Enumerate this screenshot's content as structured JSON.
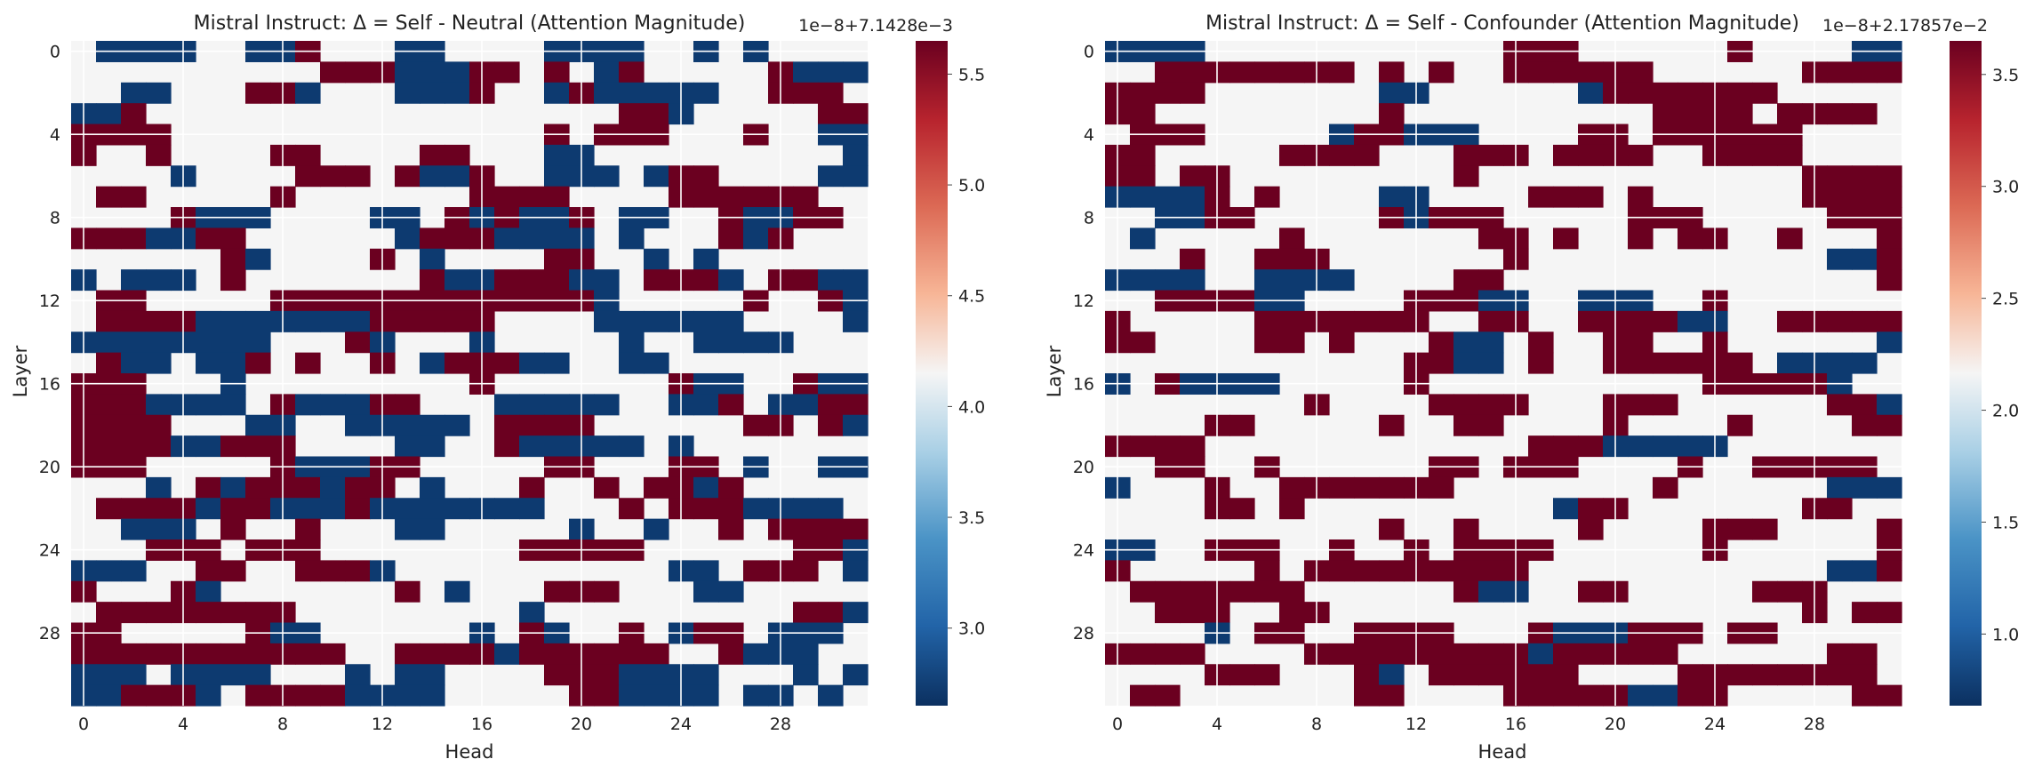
{
  "chart_data": [
    {
      "type": "heatmap",
      "title": "Mistral Instruct: Δ = Self - Neutral (Attention Magnitude)",
      "xlabel": "Head",
      "ylabel": "Layer",
      "n_rows": 32,
      "n_cols": 32,
      "x_ticks": [
        "0",
        "4",
        "8",
        "12",
        "16",
        "20",
        "24",
        "28"
      ],
      "y_ticks": [
        "0",
        "4",
        "8",
        "12",
        "16",
        "20",
        "24",
        "28"
      ],
      "colorbar": {
        "offset_label": "1e−8+7.1428e−3",
        "ticks": [
          "3.0",
          "3.5",
          "4.0",
          "4.5",
          "5.0",
          "5.5"
        ],
        "tick_values": [
          3.0,
          3.5,
          4.0,
          4.5,
          5.0,
          5.5
        ],
        "vmin": 2.65,
        "vmax": 5.65
      },
      "colormap": {
        "low": "#0d3a70",
        "mid": "#f5f5f5",
        "high": "#6b0020"
      },
      "value_levels": {
        "low": 2.65,
        "mid": 4.15,
        "high": 5.65
      },
      "value_codes": "0 = low (blue), 1 = neutral (near white), 2 = high (dark red)",
      "seed": 17,
      "p_low": 0.26,
      "p_high": 0.28
    },
    {
      "type": "heatmap",
      "title": "Mistral Instruct: Δ = Self - Confounder (Attention Magnitude)",
      "xlabel": "Head",
      "ylabel": "Layer",
      "n_rows": 32,
      "n_cols": 32,
      "x_ticks": [
        "0",
        "4",
        "8",
        "12",
        "16",
        "20",
        "24",
        "28"
      ],
      "y_ticks": [
        "0",
        "4",
        "8",
        "12",
        "16",
        "20",
        "24",
        "28"
      ],
      "colorbar": {
        "offset_label": "1e−8+2.17857e−2",
        "ticks": [
          "1.0",
          "1.5",
          "2.0",
          "2.5",
          "3.0",
          "3.5"
        ],
        "tick_values": [
          1.0,
          1.5,
          2.0,
          2.5,
          3.0,
          3.5
        ],
        "vmin": 0.68,
        "vmax": 3.65
      },
      "colormap": {
        "low": "#0d3a70",
        "mid": "#f5f5f5",
        "high": "#6b0020"
      },
      "value_levels": {
        "low": 0.68,
        "mid": 2.17,
        "high": 3.65
      },
      "value_codes": "0 = low (blue), 1 = neutral (near white), 2 = high (dark red)",
      "seed": 53,
      "p_low": 0.07,
      "p_high": 0.33
    }
  ]
}
